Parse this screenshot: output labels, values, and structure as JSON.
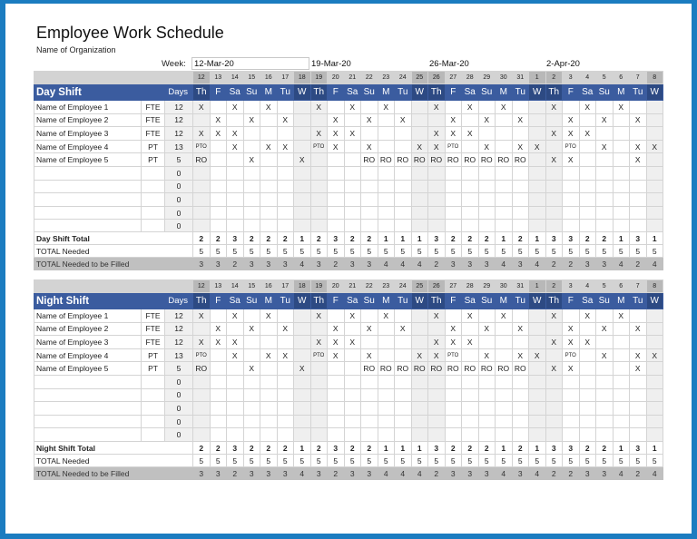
{
  "document": {
    "title": "Employee Work Schedule",
    "organization": "Name of Organization",
    "week_label": "Week:",
    "week_start_input": "12-Mar-20",
    "week_dates": [
      "19-Mar-20",
      "26-Mar-20",
      "2-Apr-20"
    ]
  },
  "calendar": {
    "date_numbers": [
      "12",
      "13",
      "14",
      "15",
      "16",
      "17",
      "18",
      "19",
      "20",
      "21",
      "22",
      "23",
      "24",
      "25",
      "26",
      "27",
      "28",
      "29",
      "30",
      "31",
      "1",
      "2",
      "3",
      "4",
      "5",
      "6",
      "7",
      "8"
    ],
    "day_names": [
      "Th",
      "F",
      "Sa",
      "Su",
      "M",
      "Tu",
      "W",
      "Th",
      "F",
      "Sa",
      "Su",
      "M",
      "Tu",
      "W",
      "Th",
      "F",
      "Sa",
      "Su",
      "M",
      "Tu",
      "W",
      "Th",
      "F",
      "Sa",
      "Su",
      "M",
      "Tu",
      "W"
    ],
    "highlight_days": [
      "W",
      "Th"
    ]
  },
  "colors": {
    "frame": "#1b7cc0",
    "header_blue": "#3b5c9f",
    "header_blue_dark": "#2d4a83",
    "date_row_gray": "#d3d3d3",
    "filled_row_gray": "#c0c0c0"
  },
  "day_shift": {
    "name": "Day Shift",
    "days_header": "Days",
    "employees": [
      {
        "name": "Name of Employee 1",
        "type": "FTE",
        "days": "12",
        "cells": [
          "X",
          "",
          "X",
          "",
          "X",
          "",
          "",
          "X",
          "",
          "X",
          "",
          "X",
          "",
          "",
          "X",
          "",
          "X",
          "",
          "X",
          "",
          "",
          "X",
          "",
          "X",
          "",
          "X",
          "",
          ""
        ]
      },
      {
        "name": "Name of Employee 2",
        "type": "FTE",
        "days": "12",
        "cells": [
          "",
          "X",
          "",
          "X",
          "",
          "X",
          "",
          "",
          "X",
          "",
          "X",
          "",
          "X",
          "",
          "",
          "X",
          "",
          "X",
          "",
          "X",
          "",
          "",
          "X",
          "",
          "X",
          "",
          "X",
          ""
        ]
      },
      {
        "name": "Name of Employee 3",
        "type": "FTE",
        "days": "12",
        "cells": [
          "X",
          "X",
          "X",
          "",
          "",
          "",
          "",
          "X",
          "X",
          "X",
          "",
          "",
          "",
          "",
          "X",
          "X",
          "X",
          "",
          "",
          "",
          "",
          "X",
          "X",
          "X",
          "",
          "",
          "",
          ""
        ]
      },
      {
        "name": "Name of Employee 4",
        "type": "PT",
        "days": "13",
        "cells": [
          "PTO",
          "",
          "X",
          "",
          "X",
          "X",
          "",
          "PTO",
          "X",
          "",
          "X",
          "",
          "",
          "X",
          "X",
          "PTO",
          "",
          "X",
          "",
          "X",
          "X",
          "",
          "PTO",
          "",
          "X",
          "",
          "X",
          "X"
        ]
      },
      {
        "name": "Name of Employee 5",
        "type": "PT",
        "days": "5",
        "cells": [
          "RO",
          "",
          "",
          "X",
          "",
          "",
          "X",
          "",
          "",
          "",
          "RO",
          "RO",
          "RO",
          "RO",
          "RO",
          "RO",
          "RO",
          "RO",
          "RO",
          "RO",
          "",
          "X",
          "X",
          "",
          "",
          "",
          "X",
          ""
        ]
      },
      {
        "name": "",
        "type": "",
        "days": "0",
        "cells": [
          "",
          "",
          "",
          "",
          "",
          "",
          "",
          "",
          "",
          "",
          "",
          "",
          "",
          "",
          "",
          "",
          "",
          "",
          "",
          "",
          "",
          "",
          "",
          "",
          "",
          "",
          "",
          ""
        ]
      },
      {
        "name": "",
        "type": "",
        "days": "0",
        "cells": [
          "",
          "",
          "",
          "",
          "",
          "",
          "",
          "",
          "",
          "",
          "",
          "",
          "",
          "",
          "",
          "",
          "",
          "",
          "",
          "",
          "",
          "",
          "",
          "",
          "",
          "",
          "",
          ""
        ]
      },
      {
        "name": "",
        "type": "",
        "days": "0",
        "cells": [
          "",
          "",
          "",
          "",
          "",
          "",
          "",
          "",
          "",
          "",
          "",
          "",
          "",
          "",
          "",
          "",
          "",
          "",
          "",
          "",
          "",
          "",
          "",
          "",
          "",
          "",
          "",
          ""
        ]
      },
      {
        "name": "",
        "type": "",
        "days": "0",
        "cells": [
          "",
          "",
          "",
          "",
          "",
          "",
          "",
          "",
          "",
          "",
          "",
          "",
          "",
          "",
          "",
          "",
          "",
          "",
          "",
          "",
          "",
          "",
          "",
          "",
          "",
          "",
          "",
          ""
        ]
      },
      {
        "name": "",
        "type": "",
        "days": "0",
        "cells": [
          "",
          "",
          "",
          "",
          "",
          "",
          "",
          "",
          "",
          "",
          "",
          "",
          "",
          "",
          "",
          "",
          "",
          "",
          "",
          "",
          "",
          "",
          "",
          "",
          "",
          "",
          "",
          ""
        ]
      }
    ],
    "totals": [
      {
        "label": "Day Shift Total",
        "values": [
          "2",
          "2",
          "3",
          "2",
          "2",
          "2",
          "1",
          "2",
          "3",
          "2",
          "2",
          "1",
          "1",
          "1",
          "3",
          "2",
          "2",
          "2",
          "1",
          "2",
          "1",
          "3",
          "3",
          "2",
          "2",
          "1",
          "3",
          "1"
        ]
      },
      {
        "label": "TOTAL Needed",
        "values": [
          "5",
          "5",
          "5",
          "5",
          "5",
          "5",
          "5",
          "5",
          "5",
          "5",
          "5",
          "5",
          "5",
          "5",
          "5",
          "5",
          "5",
          "5",
          "5",
          "5",
          "5",
          "5",
          "5",
          "5",
          "5",
          "5",
          "5",
          "5"
        ]
      },
      {
        "label": "TOTAL Needed to be Filled",
        "values": [
          "3",
          "3",
          "2",
          "3",
          "3",
          "3",
          "4",
          "3",
          "2",
          "3",
          "3",
          "4",
          "4",
          "4",
          "2",
          "3",
          "3",
          "3",
          "4",
          "3",
          "4",
          "2",
          "2",
          "3",
          "3",
          "4",
          "2",
          "4"
        ]
      }
    ]
  },
  "night_shift": {
    "name": "Night Shift",
    "days_header": "Days",
    "employees": [
      {
        "name": "Name of Employee 1",
        "type": "FTE",
        "days": "12",
        "cells": [
          "X",
          "",
          "X",
          "",
          "X",
          "",
          "",
          "X",
          "",
          "X",
          "",
          "X",
          "",
          "",
          "X",
          "",
          "X",
          "",
          "X",
          "",
          "",
          "X",
          "",
          "X",
          "",
          "X",
          "",
          ""
        ]
      },
      {
        "name": "Name of Employee 2",
        "type": "FTE",
        "days": "12",
        "cells": [
          "",
          "X",
          "",
          "X",
          "",
          "X",
          "",
          "",
          "X",
          "",
          "X",
          "",
          "X",
          "",
          "",
          "X",
          "",
          "X",
          "",
          "X",
          "",
          "",
          "X",
          "",
          "X",
          "",
          "X",
          ""
        ]
      },
      {
        "name": "Name of Employee 3",
        "type": "FTE",
        "days": "12",
        "cells": [
          "X",
          "X",
          "X",
          "",
          "",
          "",
          "",
          "X",
          "X",
          "X",
          "",
          "",
          "",
          "",
          "X",
          "X",
          "X",
          "",
          "",
          "",
          "",
          "X",
          "X",
          "X",
          "",
          "",
          "",
          ""
        ]
      },
      {
        "name": "Name of Employee 4",
        "type": "PT",
        "days": "13",
        "cells": [
          "PTO",
          "",
          "X",
          "",
          "X",
          "X",
          "",
          "PTO",
          "X",
          "",
          "X",
          "",
          "",
          "X",
          "X",
          "PTO",
          "",
          "X",
          "",
          "X",
          "X",
          "",
          "PTO",
          "",
          "X",
          "",
          "X",
          "X"
        ]
      },
      {
        "name": "Name of Employee 5",
        "type": "PT",
        "days": "5",
        "cells": [
          "RO",
          "",
          "",
          "X",
          "",
          "",
          "X",
          "",
          "",
          "",
          "RO",
          "RO",
          "RO",
          "RO",
          "RO",
          "RO",
          "RO",
          "RO",
          "RO",
          "RO",
          "",
          "X",
          "X",
          "",
          "",
          "",
          "X",
          ""
        ]
      },
      {
        "name": "",
        "type": "",
        "days": "0",
        "cells": [
          "",
          "",
          "",
          "",
          "",
          "",
          "",
          "",
          "",
          "",
          "",
          "",
          "",
          "",
          "",
          "",
          "",
          "",
          "",
          "",
          "",
          "",
          "",
          "",
          "",
          "",
          "",
          ""
        ]
      },
      {
        "name": "",
        "type": "",
        "days": "0",
        "cells": [
          "",
          "",
          "",
          "",
          "",
          "",
          "",
          "",
          "",
          "",
          "",
          "",
          "",
          "",
          "",
          "",
          "",
          "",
          "",
          "",
          "",
          "",
          "",
          "",
          "",
          "",
          "",
          ""
        ]
      },
      {
        "name": "",
        "type": "",
        "days": "0",
        "cells": [
          "",
          "",
          "",
          "",
          "",
          "",
          "",
          "",
          "",
          "",
          "",
          "",
          "",
          "",
          "",
          "",
          "",
          "",
          "",
          "",
          "",
          "",
          "",
          "",
          "",
          "",
          "",
          ""
        ]
      },
      {
        "name": "",
        "type": "",
        "days": "0",
        "cells": [
          "",
          "",
          "",
          "",
          "",
          "",
          "",
          "",
          "",
          "",
          "",
          "",
          "",
          "",
          "",
          "",
          "",
          "",
          "",
          "",
          "",
          "",
          "",
          "",
          "",
          "",
          "",
          ""
        ]
      },
      {
        "name": "",
        "type": "",
        "days": "0",
        "cells": [
          "",
          "",
          "",
          "",
          "",
          "",
          "",
          "",
          "",
          "",
          "",
          "",
          "",
          "",
          "",
          "",
          "",
          "",
          "",
          "",
          "",
          "",
          "",
          "",
          "",
          "",
          "",
          ""
        ]
      }
    ],
    "totals": [
      {
        "label": "Night Shift Total",
        "values": [
          "2",
          "2",
          "3",
          "2",
          "2",
          "2",
          "1",
          "2",
          "3",
          "2",
          "2",
          "1",
          "1",
          "1",
          "3",
          "2",
          "2",
          "2",
          "1",
          "2",
          "1",
          "3",
          "3",
          "2",
          "2",
          "1",
          "3",
          "1"
        ]
      },
      {
        "label": "TOTAL Needed",
        "values": [
          "5",
          "5",
          "5",
          "5",
          "5",
          "5",
          "5",
          "5",
          "5",
          "5",
          "5",
          "5",
          "5",
          "5",
          "5",
          "5",
          "5",
          "5",
          "5",
          "5",
          "5",
          "5",
          "5",
          "5",
          "5",
          "5",
          "5",
          "5"
        ]
      },
      {
        "label": "TOTAL Needed to be Filled",
        "values": [
          "3",
          "3",
          "2",
          "3",
          "3",
          "3",
          "4",
          "3",
          "2",
          "3",
          "3",
          "4",
          "4",
          "4",
          "2",
          "3",
          "3",
          "3",
          "4",
          "3",
          "4",
          "2",
          "2",
          "3",
          "3",
          "4",
          "2",
          "4"
        ]
      }
    ]
  }
}
